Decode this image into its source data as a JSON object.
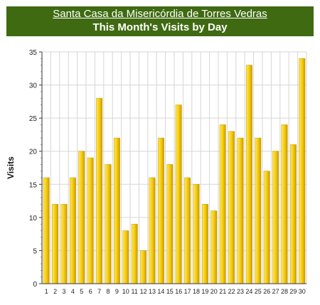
{
  "header": {
    "site_name": "Santa Casa da Misericórdia de Torres Vedras",
    "title": "This Month's Visits by Day"
  },
  "colors": {
    "header_bg": "#3f6a12",
    "bar_fill": "#f3c90a",
    "bar_highlight": "#ffe85c",
    "bar_shadow": "#c99a00",
    "grid": "#d6d6d6"
  },
  "chart_data": {
    "type": "bar",
    "title": "This Month's Visits by Day",
    "xlabel": "",
    "ylabel": "Visits",
    "ylim": [
      0,
      35
    ],
    "yticks": [
      "0",
      "5",
      "10",
      "15",
      "20",
      "25",
      "30",
      "35"
    ],
    "grid": true,
    "categories": [
      "1",
      "2",
      "3",
      "4",
      "5",
      "6",
      "7",
      "8",
      "9",
      "10",
      "11",
      "12",
      "13",
      "14",
      "15",
      "16",
      "17",
      "18",
      "19",
      "20",
      "21",
      "22",
      "23",
      "24",
      "25",
      "26",
      "27",
      "28",
      "29",
      "30"
    ],
    "values": [
      16,
      12,
      12,
      16,
      20,
      19,
      28,
      18,
      22,
      8,
      9,
      5,
      16,
      22,
      18,
      27,
      16,
      15,
      12,
      11,
      24,
      23,
      22,
      33,
      22,
      17,
      20,
      24,
      21,
      34
    ]
  }
}
